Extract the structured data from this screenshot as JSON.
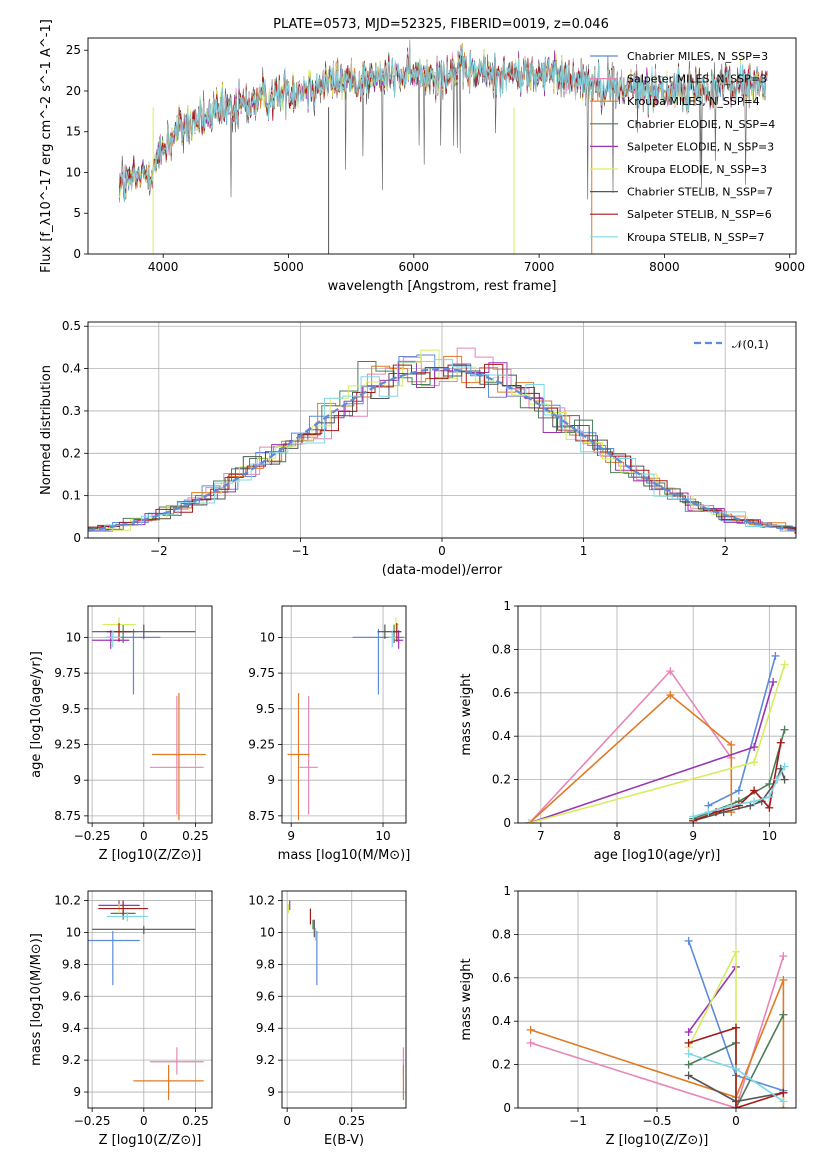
{
  "colors": {
    "Chabrier MILES": "#5b8bd9",
    "Salpeter MILES": "#e885b8",
    "Kroupa MILES": "#e07a25",
    "Chabrier ELODIE": "#4a7f57",
    "Salpeter ELODIE": "#9b35b5",
    "Kroupa ELODIE": "#d6ed5d",
    "Chabrier STELIB": "#555555",
    "Salpeter STELIB": "#a41a1a",
    "Kroupa STELIB": "#7fd8e6"
  },
  "chart_data": [
    {
      "id": "spectrum",
      "type": "line",
      "title": "PLATE=0573, MJD=52325, FIBERID=0019, z=0.046",
      "xlabel": "wavelength [Angstrom, rest frame]",
      "ylabel": "Flux [f_λ10^-17 erg cm^-2 s^-1 A^-1]",
      "xlim": [
        3400,
        9050
      ],
      "ylim": [
        0,
        26.5
      ],
      "xticks": [
        4000,
        5000,
        6000,
        7000,
        8000,
        9000
      ],
      "yticks": [
        0,
        5,
        10,
        15,
        20,
        25
      ],
      "legend_position": "top-right",
      "series": [
        {
          "name": "Chabrier MILES, N_SSP=3"
        },
        {
          "name": "Salpeter MILES, N_SSP=3"
        },
        {
          "name": "Kroupa MILES, N_SSP=4"
        },
        {
          "name": "Chabrier ELODIE, N_SSP=4"
        },
        {
          "name": "Salpeter ELODIE, N_SSP=3"
        },
        {
          "name": "Kroupa ELODIE, N_SSP=3"
        },
        {
          "name": "Chabrier STELIB, N_SSP=7"
        },
        {
          "name": "Salpeter STELIB, N_SSP=6"
        },
        {
          "name": "Kroupa STELIB, N_SSP=7"
        }
      ],
      "continuum_x": [
        3650,
        3750,
        3900,
        4000,
        4100,
        4300,
        4500,
        4700,
        5000,
        5300,
        5600,
        6000,
        6400,
        6800,
        7200,
        7600,
        8000,
        8400,
        8800
      ],
      "continuum_y": [
        8,
        9,
        10,
        13,
        15,
        16.5,
        17.5,
        18.5,
        20,
        21,
        21.5,
        22,
        22.5,
        22,
        22,
        20.5,
        20,
        20.5,
        21
      ]
    },
    {
      "id": "residuals",
      "type": "line",
      "xlabel": "(data-model)/error",
      "ylabel": "Normed distribution",
      "xlim": [
        -2.5,
        2.5
      ],
      "ylim": [
        0,
        0.51
      ],
      "xticks": [
        -2,
        -1,
        0,
        1,
        2
      ],
      "yticks": [
        0.0,
        0.1,
        0.2,
        0.3,
        0.4,
        0.5
      ],
      "grid": true,
      "legend_position": "top-right",
      "reference_name": "𝒩(0,1)"
    },
    {
      "id": "age-vs-Z",
      "type": "scatter",
      "xlabel": "Z [log10(Z/Z⊙)]",
      "ylabel": "age [log10(age/yr)]",
      "xlim": [
        -0.27,
        0.33
      ],
      "ylim": [
        8.7,
        10.22
      ],
      "xticks": [
        -0.25,
        0.0,
        0.25
      ],
      "yticks": [
        8.75,
        9.0,
        9.25,
        9.5,
        9.75,
        10.0
      ],
      "points": [
        {
          "model": "Chabrier MILES",
          "x": -0.05,
          "xerr": 0.13,
          "y": 10.0,
          "yerr": [
            0.4,
            0.06
          ]
        },
        {
          "model": "Salpeter MILES",
          "x": 0.16,
          "xerr": 0.13,
          "y": 9.09,
          "yerr": [
            0.33,
            0.5
          ]
        },
        {
          "model": "Kroupa MILES",
          "x": 0.17,
          "xerr": 0.13,
          "y": 9.18,
          "yerr": [
            0.46,
            0.43
          ]
        },
        {
          "model": "Chabrier ELODIE",
          "x": -0.1,
          "xerr": 0.06,
          "y": 10.04,
          "yerr": [
            0.08,
            0.05
          ]
        },
        {
          "model": "Salpeter ELODIE",
          "x": -0.16,
          "xerr": 0.09,
          "y": 9.98,
          "yerr": [
            0.06,
            0.07
          ]
        },
        {
          "model": "Kroupa ELODIE",
          "x": -0.12,
          "xerr": 0.08,
          "y": 10.09,
          "yerr": [
            0.06,
            0.05
          ]
        },
        {
          "model": "Chabrier STELIB",
          "x": 0.0,
          "xerr": 0.25,
          "y": 10.04,
          "yerr": [
            0.05,
            0.05
          ]
        },
        {
          "model": "Salpeter STELIB",
          "x": -0.12,
          "xerr": 0.06,
          "y": 10.04,
          "yerr": [
            0.07,
            0.06
          ]
        },
        {
          "model": "Kroupa STELIB",
          "x": -0.15,
          "xerr": 0.04,
          "y": 10.0,
          "yerr": [
            0.07,
            0.05
          ]
        }
      ]
    },
    {
      "id": "age-vs-mass",
      "type": "scatter",
      "xlabel": "mass [log10(M/M⊙)]",
      "ylabel": "",
      "xlim": [
        8.9,
        10.25
      ],
      "ylim": [
        8.7,
        10.22
      ],
      "xticks": [
        9,
        10
      ],
      "yticks": [
        8.75,
        9.0,
        9.25,
        9.5,
        9.75,
        10.0
      ],
      "points": [
        {
          "model": "Chabrier MILES",
          "x": 9.95,
          "xerr": 0.28,
          "y": 10.0,
          "yerr": [
            0.4,
            0.06
          ]
        },
        {
          "model": "Salpeter MILES",
          "x": 9.19,
          "xerr": 0.1,
          "y": 9.09,
          "yerr": [
            0.33,
            0.5
          ]
        },
        {
          "model": "Kroupa MILES",
          "x": 9.08,
          "xerr": 0.12,
          "y": 9.18,
          "yerr": [
            0.46,
            0.43
          ]
        },
        {
          "model": "Chabrier ELODIE",
          "x": 10.12,
          "xerr": 0.04,
          "y": 10.04,
          "yerr": [
            0.08,
            0.05
          ]
        },
        {
          "model": "Salpeter ELODIE",
          "x": 10.17,
          "xerr": 0.05,
          "y": 9.98,
          "yerr": [
            0.06,
            0.07
          ]
        },
        {
          "model": "Kroupa ELODIE",
          "x": 10.14,
          "xerr": 0.03,
          "y": 10.09,
          "yerr": [
            0.06,
            0.05
          ]
        },
        {
          "model": "Chabrier STELIB",
          "x": 10.02,
          "xerr": 0.08,
          "y": 10.04,
          "yerr": [
            0.05,
            0.05
          ]
        },
        {
          "model": "Salpeter STELIB",
          "x": 10.15,
          "xerr": 0.05,
          "y": 10.04,
          "yerr": [
            0.07,
            0.06
          ]
        },
        {
          "model": "Kroupa STELIB",
          "x": 10.1,
          "xerr": 0.04,
          "y": 10.0,
          "yerr": [
            0.07,
            0.05
          ]
        }
      ]
    },
    {
      "id": "weight-vs-age",
      "type": "line",
      "xlabel": "age [log10(age/yr)]",
      "ylabel": "mass weight",
      "xlim": [
        6.7,
        10.35
      ],
      "ylim": [
        0,
        1.0
      ],
      "xticks": [
        7,
        8,
        9,
        10
      ],
      "yticks": [
        0.0,
        0.2,
        0.4,
        0.6,
        0.8,
        1.0
      ],
      "grid": true,
      "series": [
        {
          "model": "Chabrier MILES",
          "x": [
            9.2,
            9.6,
            10.08
          ],
          "y": [
            0.08,
            0.15,
            0.77
          ]
        },
        {
          "model": "Salpeter MILES",
          "x": [
            6.85,
            8.7,
            9.5
          ],
          "y": [
            0.0,
            0.7,
            0.3
          ]
        },
        {
          "model": "Kroupa MILES",
          "x": [
            6.85,
            8.7,
            9.5,
            9.5
          ],
          "y": [
            0.0,
            0.59,
            0.36,
            0.05
          ]
        },
        {
          "model": "Chabrier ELODIE",
          "x": [
            9.0,
            9.6,
            10.0,
            10.2
          ],
          "y": [
            0.02,
            0.1,
            0.18,
            0.43
          ]
        },
        {
          "model": "Salpeter ELODIE",
          "x": [
            6.85,
            9.8,
            10.05
          ],
          "y": [
            0.0,
            0.35,
            0.65
          ]
        },
        {
          "model": "Kroupa ELODIE",
          "x": [
            6.85,
            9.8,
            10.2
          ],
          "y": [
            0.0,
            0.28,
            0.73
          ]
        },
        {
          "model": "Chabrier STELIB",
          "x": [
            9.0,
            9.4,
            9.75,
            9.9,
            10.1,
            10.15,
            10.2
          ],
          "y": [
            0.01,
            0.05,
            0.08,
            0.1,
            0.2,
            0.25,
            0.2
          ]
        },
        {
          "model": "Salpeter STELIB",
          "x": [
            9.0,
            9.3,
            9.6,
            9.8,
            10.0,
            10.15
          ],
          "y": [
            0.01,
            0.05,
            0.08,
            0.15,
            0.07,
            0.37
          ]
        },
        {
          "model": "Kroupa STELIB",
          "x": [
            9.0,
            9.2,
            9.5,
            9.8,
            10.0,
            10.1,
            10.2
          ],
          "y": [
            0.03,
            0.05,
            0.08,
            0.1,
            0.12,
            0.2,
            0.26
          ]
        }
      ]
    },
    {
      "id": "mass-vs-Z",
      "type": "scatter",
      "xlabel": "Z [log10(Z/Z⊙)]",
      "ylabel": "mass [log10(M/M⊙)]",
      "xlim": [
        -0.27,
        0.33
      ],
      "ylim": [
        8.9,
        10.26
      ],
      "xticks": [
        -0.25,
        0.0,
        0.25
      ],
      "yticks": [
        9.0,
        9.2,
        9.4,
        9.6,
        9.8,
        10.0,
        10.2
      ],
      "points": [
        {
          "model": "Chabrier MILES",
          "x": -0.15,
          "xerr": 0.13,
          "y": 9.95,
          "yerr": [
            0.28,
            0.06
          ]
        },
        {
          "model": "Salpeter MILES",
          "x": 0.16,
          "xerr": 0.13,
          "y": 9.19,
          "yerr": [
            0.08,
            0.09
          ]
        },
        {
          "model": "Kroupa MILES",
          "x": 0.12,
          "xerr": 0.17,
          "y": 9.07,
          "yerr": [
            0.12,
            0.1
          ]
        },
        {
          "model": "Chabrier ELODIE",
          "x": -0.1,
          "xerr": 0.06,
          "y": 10.12,
          "yerr": [
            0.04,
            0.03
          ]
        },
        {
          "model": "Salpeter ELODIE",
          "x": -0.12,
          "xerr": 0.1,
          "y": 10.17,
          "yerr": [
            0.03,
            0.03
          ]
        },
        {
          "model": "Kroupa ELODIE",
          "x": -0.12,
          "xerr": 0.08,
          "y": 10.15,
          "yerr": [
            0.03,
            0.03
          ]
        },
        {
          "model": "Chabrier STELIB",
          "x": 0.0,
          "xerr": 0.25,
          "y": 10.02,
          "yerr": [
            0.03,
            0.02
          ]
        },
        {
          "model": "Salpeter STELIB",
          "x": -0.1,
          "xerr": 0.12,
          "y": 10.15,
          "yerr": [
            0.05,
            0.05
          ]
        },
        {
          "model": "Kroupa STELIB",
          "x": -0.08,
          "xerr": 0.1,
          "y": 10.1,
          "yerr": [
            0.03,
            0.03
          ]
        }
      ]
    },
    {
      "id": "mass-vs-EBV",
      "type": "scatter",
      "xlabel": "E(B-V)",
      "ylabel": "",
      "xlim": [
        -0.02,
        0.46
      ],
      "ylim": [
        8.9,
        10.26
      ],
      "xticks": [
        0.0,
        0.25
      ],
      "yticks": [
        9.0,
        9.2,
        9.4,
        9.6,
        9.8,
        10.0,
        10.2
      ],
      "points": [
        {
          "model": "Chabrier MILES",
          "x": 0.115,
          "xerr": 0.0,
          "y": 9.95,
          "yerr": [
            0.28,
            0.06
          ]
        },
        {
          "model": "Salpeter MILES",
          "x": 0.45,
          "xerr": 0.0,
          "y": 9.19,
          "yerr": [
            0.08,
            0.09
          ]
        },
        {
          "model": "Kroupa MILES",
          "x": 0.45,
          "xerr": 0.0,
          "y": 9.07,
          "yerr": [
            0.12,
            0.1
          ]
        },
        {
          "model": "Chabrier ELODIE",
          "x": 0.1,
          "xerr": 0.0,
          "y": 10.05,
          "yerr": [
            0.03,
            0.03
          ]
        },
        {
          "model": "Salpeter ELODIE",
          "x": 0.01,
          "xerr": 0.0,
          "y": 10.17,
          "yerr": [
            0.03,
            0.03
          ]
        },
        {
          "model": "Kroupa ELODIE",
          "x": 0.005,
          "xerr": 0.0,
          "y": 10.15,
          "yerr": [
            0.03,
            0.03
          ]
        },
        {
          "model": "Chabrier STELIB",
          "x": 0.105,
          "xerr": 0.0,
          "y": 10.0,
          "yerr": [
            0.03,
            0.08
          ]
        },
        {
          "model": "Salpeter STELIB",
          "x": 0.09,
          "xerr": 0.0,
          "y": 10.1,
          "yerr": [
            0.05,
            0.05
          ]
        },
        {
          "model": "Kroupa STELIB",
          "x": 0.11,
          "xerr": 0.0,
          "y": 10.0,
          "yerr": [
            0.05,
            0.03
          ]
        }
      ]
    },
    {
      "id": "weight-vs-Z",
      "type": "line",
      "xlabel": "Z [log10(Z/Z⊙)]",
      "ylabel": "mass weight",
      "xlim": [
        -1.38,
        0.38
      ],
      "ylim": [
        0,
        1.0
      ],
      "xticks": [
        -1.0,
        -0.5,
        0.0
      ],
      "yticks": [
        0.0,
        0.2,
        0.4,
        0.6,
        0.8,
        1.0
      ],
      "grid": true,
      "series": [
        {
          "model": "Chabrier MILES",
          "x": [
            -0.3,
            0.0,
            0.3
          ],
          "y": [
            0.77,
            0.15,
            0.08
          ]
        },
        {
          "model": "Salpeter MILES",
          "x": [
            -1.3,
            0.0,
            0.3
          ],
          "y": [
            0.3,
            0.0,
            0.7
          ]
        },
        {
          "model": "Kroupa MILES",
          "x": [
            -1.3,
            0.0,
            0.3,
            0.3
          ],
          "y": [
            0.36,
            0.05,
            0.59,
            0.0
          ]
        },
        {
          "model": "Chabrier ELODIE",
          "x": [
            -0.3,
            0.0,
            0.0,
            0.3
          ],
          "y": [
            0.2,
            0.3,
            0.0,
            0.43
          ]
        },
        {
          "model": "Salpeter ELODIE",
          "x": [
            -0.3,
            0.0
          ],
          "y": [
            0.35,
            0.65
          ]
        },
        {
          "model": "Kroupa ELODIE",
          "x": [
            -0.3,
            0.0,
            0.0
          ],
          "y": [
            0.28,
            0.72,
            0.0
          ]
        },
        {
          "model": "Chabrier STELIB",
          "x": [
            -0.3,
            0.0,
            0.3
          ],
          "y": [
            0.15,
            0.03,
            0.07
          ]
        },
        {
          "model": "Salpeter STELIB",
          "x": [
            -0.3,
            0.0,
            0.0,
            0.3
          ],
          "y": [
            0.3,
            0.37,
            0.0,
            0.07
          ]
        },
        {
          "model": "Kroupa STELIB",
          "x": [
            -0.3,
            0.0,
            0.3
          ],
          "y": [
            0.25,
            0.18,
            0.03
          ]
        }
      ]
    }
  ]
}
